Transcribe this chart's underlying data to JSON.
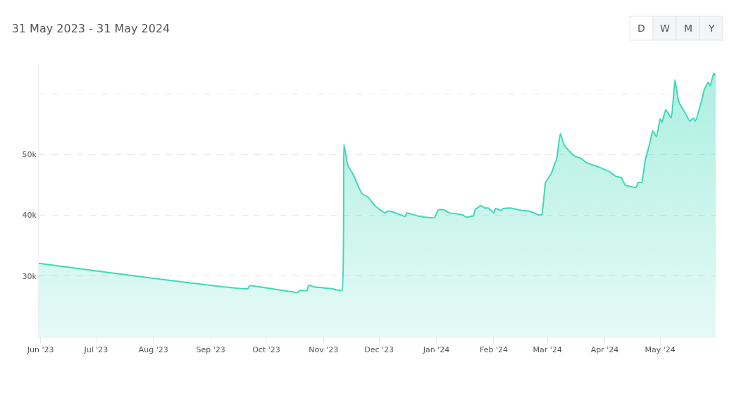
{
  "chart_data": {
    "type": "area",
    "title": "31 May 2023 - 31 May 2024",
    "annotations": [
      "D",
      "W",
      "M",
      "Y"
    ],
    "x": [
      "2023-05-31",
      "2023-09-21",
      "2023-09-22",
      "2023-10-18",
      "2023-10-19",
      "2023-10-23",
      "2023-10-24",
      "2023-10-27",
      "2023-11-06",
      "2023-11-08",
      "2023-11-11",
      "2023-11-12",
      "2023-11-14",
      "2023-11-17",
      "2023-11-20",
      "2023-11-22",
      "2023-11-25",
      "2023-11-29",
      "2023-12-04",
      "2023-12-06",
      "2023-12-10",
      "2023-12-15",
      "2023-12-16",
      "2023-12-23",
      "2023-12-29",
      "2023-12-31",
      "2024-01-02",
      "2024-01-05",
      "2024-01-08",
      "2024-01-15",
      "2024-01-17",
      "2024-01-21",
      "2024-01-22",
      "2024-01-25",
      "2024-01-27",
      "2024-01-29",
      "2024-02-01",
      "2024-02-02",
      "2024-02-05",
      "2024-02-06",
      "2024-02-10",
      "2024-02-16",
      "2024-02-20",
      "2024-02-25",
      "2024-02-27",
      "2024-02-29",
      "2024-03-03",
      "2024-03-05",
      "2024-03-06",
      "2024-03-08",
      "2024-03-10",
      "2024-03-13",
      "2024-03-16",
      "2024-03-19",
      "2024-03-22",
      "2024-03-29",
      "2024-04-04",
      "2024-04-07",
      "2024-04-10",
      "2024-04-12",
      "2024-04-14",
      "2024-04-18",
      "2024-04-19",
      "2024-04-21",
      "2024-04-23",
      "2024-04-25",
      "2024-04-27",
      "2024-04-29",
      "2024-05-01",
      "2024-05-02",
      "2024-05-04",
      "2024-05-07",
      "2024-05-09",
      "2024-05-11",
      "2024-05-14",
      "2024-05-17",
      "2024-05-19",
      "2024-05-20",
      "2024-05-23",
      "2024-05-25",
      "2024-05-27",
      "2024-05-28",
      "2024-05-30",
      "2024-05-31"
    ],
    "series": [
      {
        "color": "#3dd9b8",
        "values": [
          32100,
          27900,
          28400,
          27300,
          27600,
          27600,
          28500,
          28200,
          27900,
          27700,
          27700,
          51700,
          48300,
          46700,
          44600,
          43500,
          43000,
          41500,
          40400,
          40700,
          40400,
          39800,
          40400,
          39800,
          39600,
          39600,
          40900,
          40900,
          40400,
          40100,
          39700,
          39900,
          40900,
          41600,
          41200,
          41200,
          40400,
          41100,
          40800,
          41100,
          41200,
          40800,
          40700,
          40100,
          40100,
          45400,
          46800,
          48500,
          49200,
          53500,
          51600,
          50500,
          49700,
          49400,
          48700,
          47900,
          47100,
          46400,
          46200,
          45000,
          44800,
          44600,
          45400,
          45400,
          49200,
          51400,
          53900,
          52900,
          55900,
          55300,
          57400,
          56000,
          62300,
          58700,
          57100,
          55500,
          56000,
          55500,
          58400,
          60800,
          61900,
          61300,
          63400,
          63000
        ]
      }
    ],
    "xlim": [
      "2023-05-31",
      "2024-05-31"
    ],
    "xticks": [
      {
        "value": "2023-06-01",
        "label": "Jun '23"
      },
      {
        "value": "2023-07-01",
        "label": "Jul '23"
      },
      {
        "value": "2023-08-01",
        "label": "Aug '23"
      },
      {
        "value": "2023-09-01",
        "label": "Sep '23"
      },
      {
        "value": "2023-10-01",
        "label": "Oct '23"
      },
      {
        "value": "2023-11-01",
        "label": "Nov '23"
      },
      {
        "value": "2023-12-01",
        "label": "Dec '23"
      },
      {
        "value": "2024-01-01",
        "label": "Jan '24"
      },
      {
        "value": "2024-02-01",
        "label": "Feb '24"
      },
      {
        "value": "2024-03-01",
        "label": "Mar '24"
      },
      {
        "value": "2024-04-01",
        "label": "Apr '24"
      },
      {
        "value": "2024-05-01",
        "label": "May '24"
      }
    ],
    "ylim": [
      20000,
      65000
    ],
    "yticks": [
      {
        "value": 30000,
        "label": "30k"
      },
      {
        "value": 40000,
        "label": "40k"
      },
      {
        "value": 50000,
        "label": "50k"
      },
      {
        "value": 60000,
        "label": null
      }
    ],
    "grid": "y",
    "line_style": "solid",
    "marker": "none"
  }
}
